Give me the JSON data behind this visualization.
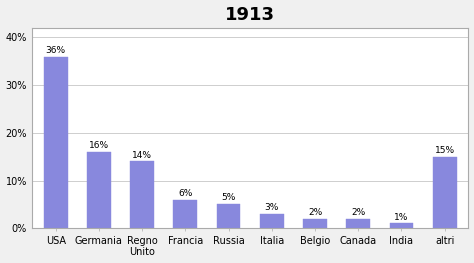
{
  "title": "1913",
  "categories": [
    "USA",
    "Germania",
    "Regno\nUnito",
    "Francia",
    "Russia",
    "Italia",
    "Belgio",
    "Canada",
    "India",
    "altri"
  ],
  "values": [
    36,
    16,
    14,
    6,
    5,
    3,
    2,
    2,
    1,
    15
  ],
  "bar_color": "#8888dd",
  "bar_edge_color": "#8888dd",
  "ylim": [
    0,
    42
  ],
  "yticks": [
    0,
    10,
    20,
    30,
    40
  ],
  "ytick_labels": [
    "0%",
    "10%",
    "20%",
    "30%",
    "40%"
  ],
  "background_color": "#ffffff",
  "figure_background": "#f0f0f0",
  "grid_color": "#bbbbbb",
  "title_fontsize": 13,
  "label_fontsize": 7,
  "bar_label_fontsize": 6.5,
  "bar_width": 0.55
}
